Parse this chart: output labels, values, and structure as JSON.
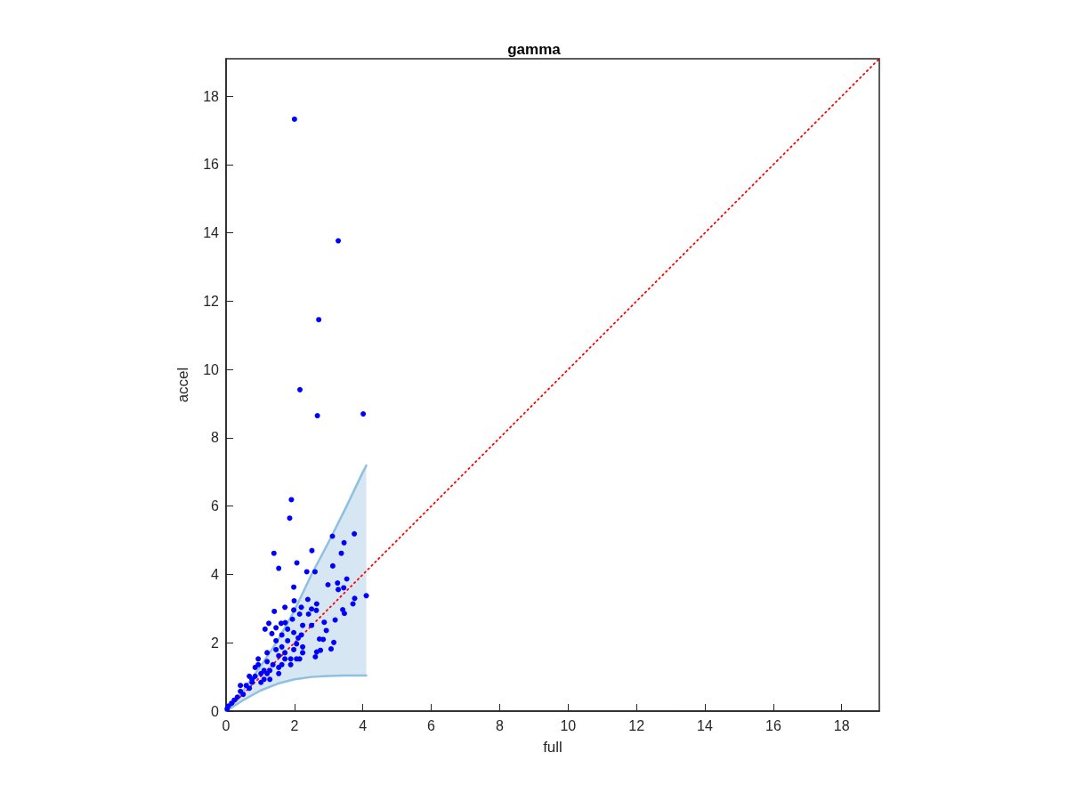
{
  "chart_data": {
    "type": "scatter",
    "title": "gamma",
    "xlabel": "full",
    "ylabel": "accel",
    "xlim": [
      0,
      19.1
    ],
    "ylim": [
      0,
      19.1
    ],
    "xticks": [
      0,
      2,
      4,
      6,
      8,
      10,
      12,
      14,
      16,
      18
    ],
    "yticks": [
      0,
      2,
      4,
      6,
      8,
      10,
      12,
      14,
      16,
      18
    ],
    "grid": false,
    "marker": "circle",
    "series": [
      {
        "color": "#0000ff",
        "x": [
          2.0,
          3.28,
          2.71,
          2.16,
          2.67,
          4.01,
          1.91,
          1.86,
          3.75,
          3.11,
          3.45,
          2.51,
          1.4,
          3.37,
          2.07,
          1.54,
          3.12,
          2.36,
          2.6,
          3.53,
          2.98,
          3.26,
          3.44,
          3.28,
          1.98,
          3.76,
          4.1,
          3.71,
          3.41,
          3.46,
          3.19,
          2.87,
          2.93,
          3.15,
          3.07,
          2.73,
          2.84,
          2.76,
          2.61,
          2.65,
          2.39,
          1.99,
          2.65,
          2.2,
          1.72,
          1.41,
          2.5,
          2.64,
          2.15,
          1.98,
          2.41,
          1.25,
          1.14,
          1.61,
          1.73,
          1.94,
          2.24,
          2.5,
          2.2,
          1.98,
          1.63,
          1.34,
          1.46,
          1.8,
          2.06,
          2.24,
          1.98,
          1.72,
          1.54,
          2.06,
          1.89,
          1.72,
          1.2,
          1.37,
          1.54,
          1.28,
          1.02,
          0.85,
          0.94,
          1.11,
          0.76,
          0.76,
          0.59,
          0.68,
          0.42,
          0.5,
          0.33,
          0.24,
          0.16,
          0.07,
          0.03,
          1.2,
          0.94,
          1.46,
          1.63,
          1.8,
          1.46,
          1.89,
          2.15,
          2.24,
          2.11,
          0.85,
          1.02,
          1.28,
          0.68,
          0.42,
          1.2,
          1.54,
          1.63,
          1.11
        ],
        "values": [
          17.33,
          13.77,
          11.46,
          9.41,
          8.65,
          8.7,
          6.19,
          5.65,
          5.19,
          5.12,
          4.93,
          4.7,
          4.62,
          4.62,
          4.34,
          4.18,
          4.25,
          4.08,
          4.08,
          3.87,
          3.7,
          3.75,
          3.61,
          3.56,
          3.63,
          3.3,
          3.38,
          3.14,
          2.97,
          2.86,
          2.67,
          2.6,
          2.36,
          2.01,
          1.82,
          2.11,
          2.1,
          1.78,
          1.59,
          1.73,
          3.27,
          3.23,
          3.14,
          3.04,
          3.04,
          2.92,
          2.99,
          2.95,
          2.84,
          2.96,
          2.84,
          2.57,
          2.4,
          2.57,
          2.59,
          2.69,
          2.51,
          2.51,
          2.23,
          2.3,
          2.23,
          2.27,
          2.06,
          2.06,
          1.97,
          1.88,
          1.8,
          1.71,
          1.62,
          1.53,
          1.53,
          1.53,
          1.45,
          1.36,
          1.28,
          1.19,
          1.1,
          1.28,
          1.36,
          0.93,
          0.93,
          0.84,
          0.75,
          0.67,
          0.58,
          0.49,
          0.41,
          0.32,
          0.23,
          0.15,
          0.06,
          1.71,
          1.53,
          1.8,
          1.88,
          2.4,
          2.44,
          1.36,
          1.53,
          1.71,
          2.14,
          1.02,
          0.84,
          0.93,
          1.02,
          0.75,
          1.1,
          1.1,
          1.36,
          1.19
        ]
      },
      {
        "type": "line",
        "color": "#ff0000",
        "line_style": "dotted",
        "marker": "none",
        "x": [
          0,
          19.1
        ],
        "values": [
          0,
          19.1
        ]
      },
      {
        "type": "line",
        "color": "#8fc0e0",
        "marker": "none",
        "x": [
          0,
          0.5,
          1,
          1.5,
          2,
          2.5,
          3,
          3.5,
          4,
          4.1
        ],
        "values": [
          0,
          0.32,
          0.6,
          0.8,
          0.93,
          1.0,
          1.03,
          1.04,
          1.04,
          1.04
        ]
      },
      {
        "type": "line",
        "color": "#8fc0e0",
        "marker": "none",
        "x": [
          0,
          0.5,
          1,
          1.5,
          2,
          2.5,
          3,
          3.5,
          4,
          4.1
        ],
        "values": [
          0,
          0.6,
          1.3,
          2.05,
          2.95,
          4.0,
          4.95,
          5.95,
          7.0,
          7.19
        ]
      },
      {
        "type": "area",
        "color": "#d6e6f2",
        "x": [
          0,
          0.5,
          1,
          1.5,
          2,
          2.5,
          3,
          3.5,
          4,
          4.1
        ],
        "values": [
          null,
          null,
          null,
          null,
          null,
          null,
          null,
          null,
          null,
          null
        ],
        "lower": [
          0,
          0.32,
          0.6,
          0.8,
          0.93,
          1.0,
          1.03,
          1.04,
          1.04,
          1.04
        ],
        "upper": [
          0,
          0.6,
          1.3,
          2.05,
          2.95,
          4.0,
          4.95,
          5.95,
          7.0,
          7.19
        ]
      }
    ]
  }
}
